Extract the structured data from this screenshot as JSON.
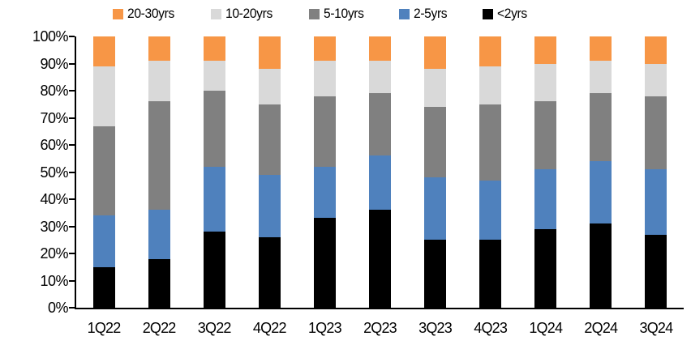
{
  "chart_data": {
    "type": "bar",
    "stacked": true,
    "percent_stacked": true,
    "title": "",
    "xlabel": "",
    "ylabel": "",
    "unit": "%",
    "grid": false,
    "legend_position": "top",
    "ylim": [
      0,
      100
    ],
    "y_ticks": [
      "0%",
      "10%",
      "20%",
      "30%",
      "40%",
      "50%",
      "60%",
      "70%",
      "80%",
      "90%",
      "100%"
    ],
    "categories": [
      "1Q22",
      "2Q22",
      "3Q22",
      "4Q22",
      "1Q23",
      "2Q23",
      "3Q23",
      "4Q23",
      "1Q24",
      "2Q24",
      "3Q24"
    ],
    "series": [
      {
        "name": "<2yrs",
        "color": "#000000",
        "values": [
          15,
          18,
          28,
          26,
          33,
          36,
          25,
          25,
          29,
          31,
          27
        ]
      },
      {
        "name": "2-5yrs",
        "color": "#4F81BD",
        "values": [
          19,
          18,
          24,
          23,
          19,
          20,
          23,
          22,
          22,
          23,
          24
        ]
      },
      {
        "name": "5-10yrs",
        "color": "#808080",
        "values": [
          33,
          40,
          28,
          26,
          26,
          23,
          26,
          28,
          25,
          25,
          27
        ]
      },
      {
        "name": "10-20yrs",
        "color": "#D9D9D9",
        "values": [
          22,
          15,
          11,
          13,
          13,
          12,
          14,
          14,
          14,
          12,
          12
        ]
      },
      {
        "name": "20-30yrs",
        "color": "#F79646",
        "values": [
          11,
          9,
          9,
          12,
          9,
          9,
          12,
          11,
          10,
          9,
          10
        ]
      }
    ],
    "legend_order": [
      "20-30yrs",
      "10-20yrs",
      "5-10yrs",
      "2-5yrs",
      "<2yrs"
    ],
    "colors": {
      "orange": "#F79646",
      "light_gray": "#D9D9D9",
      "dark_gray": "#808080",
      "blue": "#4F81BD",
      "black": "#000000",
      "axis": "#000000"
    }
  }
}
